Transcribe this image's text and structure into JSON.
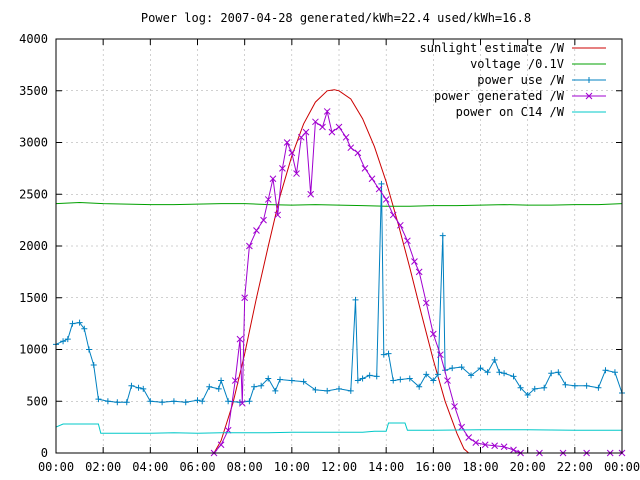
{
  "title": "Power log: 2007-04-28 generated/kWh=22.4 used/kWh=16.8",
  "chart_data": {
    "type": "line",
    "title": "Power log: 2007-04-28 generated/kWh=22.4 used/kWh=16.8",
    "xlabel": "",
    "ylabel": "",
    "xlim": [
      0,
      24
    ],
    "ylim": [
      0,
      4000
    ],
    "grid": true,
    "legend_position": "top-right",
    "x_tick_labels": [
      "00:00",
      "02:00",
      "04:00",
      "06:00",
      "08:00",
      "10:00",
      "12:00",
      "14:00",
      "16:00",
      "18:00",
      "20:00",
      "22:00",
      "00:00"
    ],
    "y_tick_labels": [
      "0",
      "500",
      "1000",
      "1500",
      "2000",
      "2500",
      "3000",
      "3500",
      "4000"
    ],
    "series": [
      {
        "name": "sunlight estimate /W",
        "color": "#cc0000",
        "style": "line",
        "points": [
          [
            6.7,
            0
          ],
          [
            7.0,
            120
          ],
          [
            7.5,
            480
          ],
          [
            8.0,
            960
          ],
          [
            8.5,
            1500
          ],
          [
            9.0,
            2000
          ],
          [
            9.5,
            2480
          ],
          [
            10.0,
            2870
          ],
          [
            10.5,
            3180
          ],
          [
            11.0,
            3390
          ],
          [
            11.5,
            3500
          ],
          [
            11.8,
            3510
          ],
          [
            12.0,
            3500
          ],
          [
            12.5,
            3420
          ],
          [
            13.0,
            3230
          ],
          [
            13.5,
            2960
          ],
          [
            14.0,
            2620
          ],
          [
            14.5,
            2220
          ],
          [
            15.0,
            1790
          ],
          [
            15.5,
            1340
          ],
          [
            16.0,
            900
          ],
          [
            16.5,
            500
          ],
          [
            17.0,
            190
          ],
          [
            17.3,
            40
          ],
          [
            17.5,
            0
          ]
        ]
      },
      {
        "name": "voltage /0.1V",
        "color": "#00a000",
        "style": "line",
        "points": [
          [
            0,
            2410
          ],
          [
            1,
            2420
          ],
          [
            2,
            2410
          ],
          [
            3,
            2405
          ],
          [
            4,
            2400
          ],
          [
            5,
            2400
          ],
          [
            6,
            2405
          ],
          [
            7,
            2410
          ],
          [
            8,
            2410
          ],
          [
            9,
            2400
          ],
          [
            10,
            2395
          ],
          [
            11,
            2400
          ],
          [
            12,
            2395
          ],
          [
            13,
            2390
          ],
          [
            14,
            2385
          ],
          [
            15,
            2385
          ],
          [
            16,
            2390
          ],
          [
            17,
            2390
          ],
          [
            18,
            2395
          ],
          [
            19,
            2400
          ],
          [
            20,
            2395
          ],
          [
            21,
            2395
          ],
          [
            22,
            2400
          ],
          [
            23,
            2400
          ],
          [
            24,
            2410
          ]
        ]
      },
      {
        "name": "power use /W",
        "color": "#0080c0",
        "style": "linespoints-plus",
        "points": [
          [
            0,
            1050
          ],
          [
            0.3,
            1080
          ],
          [
            0.5,
            1100
          ],
          [
            0.7,
            1250
          ],
          [
            1.0,
            1260
          ],
          [
            1.2,
            1200
          ],
          [
            1.4,
            1000
          ],
          [
            1.6,
            850
          ],
          [
            1.8,
            520
          ],
          [
            2.2,
            500
          ],
          [
            2.6,
            490
          ],
          [
            3.0,
            490
          ],
          [
            3.2,
            650
          ],
          [
            3.5,
            630
          ],
          [
            3.7,
            620
          ],
          [
            4.0,
            500
          ],
          [
            4.5,
            490
          ],
          [
            5.0,
            500
          ],
          [
            5.5,
            490
          ],
          [
            6.0,
            510
          ],
          [
            6.2,
            500
          ],
          [
            6.5,
            640
          ],
          [
            6.9,
            620
          ],
          [
            7.0,
            700
          ],
          [
            7.3,
            500
          ],
          [
            7.8,
            490
          ],
          [
            8.2,
            500
          ],
          [
            8.4,
            640
          ],
          [
            8.7,
            650
          ],
          [
            9.0,
            720
          ],
          [
            9.3,
            600
          ],
          [
            9.5,
            710
          ],
          [
            10.0,
            700
          ],
          [
            10.5,
            690
          ],
          [
            11.0,
            610
          ],
          [
            11.5,
            600
          ],
          [
            12.0,
            620
          ],
          [
            12.5,
            600
          ],
          [
            12.7,
            1480
          ],
          [
            12.8,
            700
          ],
          [
            13.0,
            720
          ],
          [
            13.3,
            750
          ],
          [
            13.6,
            740
          ],
          [
            13.8,
            2600
          ],
          [
            13.9,
            950
          ],
          [
            14.1,
            960
          ],
          [
            14.3,
            700
          ],
          [
            14.6,
            710
          ],
          [
            15.0,
            720
          ],
          [
            15.4,
            640
          ],
          [
            15.7,
            760
          ],
          [
            16.0,
            700
          ],
          [
            16.2,
            760
          ],
          [
            16.4,
            2100
          ],
          [
            16.5,
            800
          ],
          [
            16.8,
            820
          ],
          [
            17.2,
            830
          ],
          [
            17.6,
            750
          ],
          [
            18.0,
            820
          ],
          [
            18.3,
            780
          ],
          [
            18.6,
            900
          ],
          [
            18.8,
            780
          ],
          [
            19.0,
            770
          ],
          [
            19.4,
            740
          ],
          [
            19.7,
            630
          ],
          [
            20.0,
            560
          ],
          [
            20.3,
            620
          ],
          [
            20.7,
            630
          ],
          [
            21.0,
            770
          ],
          [
            21.3,
            780
          ],
          [
            21.6,
            660
          ],
          [
            22.0,
            650
          ],
          [
            22.5,
            650
          ],
          [
            23.0,
            630
          ],
          [
            23.3,
            800
          ],
          [
            23.7,
            780
          ],
          [
            24.0,
            580
          ]
        ]
      },
      {
        "name": "power generated /W",
        "color": "#a000d0",
        "style": "linespoints-x",
        "points": [
          [
            6.7,
            0
          ],
          [
            7.0,
            80
          ],
          [
            7.3,
            220
          ],
          [
            7.6,
            700
          ],
          [
            7.8,
            1100
          ],
          [
            7.9,
            480
          ],
          [
            8.0,
            1500
          ],
          [
            8.2,
            2000
          ],
          [
            8.5,
            2150
          ],
          [
            8.8,
            2250
          ],
          [
            9.0,
            2450
          ],
          [
            9.2,
            2650
          ],
          [
            9.4,
            2300
          ],
          [
            9.6,
            2750
          ],
          [
            9.8,
            3000
          ],
          [
            10.0,
            2900
          ],
          [
            10.2,
            2700
          ],
          [
            10.4,
            3050
          ],
          [
            10.6,
            3100
          ],
          [
            10.8,
            2500
          ],
          [
            11.0,
            3200
          ],
          [
            11.3,
            3150
          ],
          [
            11.5,
            3300
          ],
          [
            11.7,
            3100
          ],
          [
            12.0,
            3150
          ],
          [
            12.3,
            3050
          ],
          [
            12.5,
            2950
          ],
          [
            12.8,
            2900
          ],
          [
            13.1,
            2750
          ],
          [
            13.4,
            2650
          ],
          [
            13.7,
            2550
          ],
          [
            14.0,
            2450
          ],
          [
            14.3,
            2300
          ],
          [
            14.6,
            2200
          ],
          [
            14.9,
            2050
          ],
          [
            15.2,
            1850
          ],
          [
            15.4,
            1750
          ],
          [
            15.7,
            1450
          ],
          [
            16.0,
            1150
          ],
          [
            16.3,
            950
          ],
          [
            16.6,
            700
          ],
          [
            16.9,
            450
          ],
          [
            17.2,
            250
          ],
          [
            17.5,
            150
          ],
          [
            17.8,
            100
          ],
          [
            18.2,
            80
          ],
          [
            18.6,
            70
          ],
          [
            19.0,
            60
          ],
          [
            19.4,
            30
          ],
          [
            19.7,
            0
          ],
          [
            20.5,
            0
          ],
          [
            21.5,
            0
          ],
          [
            22.5,
            0
          ],
          [
            23.5,
            0
          ],
          [
            24.0,
            0
          ]
        ]
      },
      {
        "name": "power on C14 /W",
        "color": "#00c8c8",
        "style": "line",
        "points": [
          [
            0,
            250
          ],
          [
            0.3,
            280
          ],
          [
            1.0,
            280
          ],
          [
            1.8,
            280
          ],
          [
            1.9,
            190
          ],
          [
            3.0,
            190
          ],
          [
            4.0,
            190
          ],
          [
            5.0,
            195
          ],
          [
            6.0,
            190
          ],
          [
            7.0,
            195
          ],
          [
            8.0,
            195
          ],
          [
            9.0,
            195
          ],
          [
            10.0,
            200
          ],
          [
            11.0,
            200
          ],
          [
            12.0,
            200
          ],
          [
            13.0,
            200
          ],
          [
            13.5,
            210
          ],
          [
            14.0,
            210
          ],
          [
            14.1,
            290
          ],
          [
            14.8,
            290
          ],
          [
            14.9,
            220
          ],
          [
            16.0,
            220
          ],
          [
            18.0,
            225
          ],
          [
            20.0,
            225
          ],
          [
            22.0,
            220
          ],
          [
            24.0,
            220
          ]
        ]
      }
    ]
  }
}
